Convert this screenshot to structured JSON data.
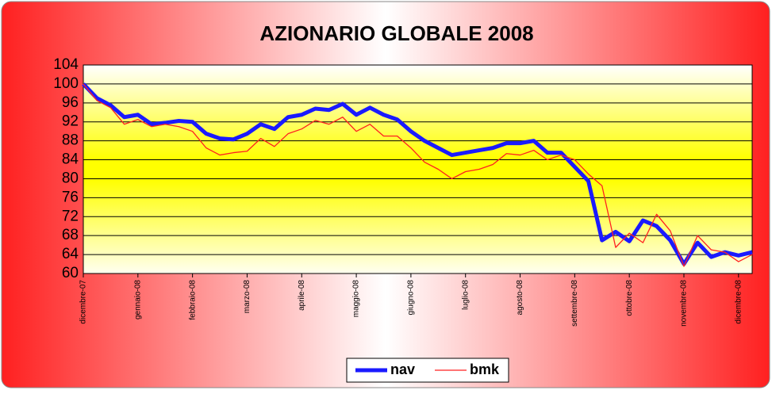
{
  "chart_data": {
    "type": "line",
    "title": "AZIONARIO GLOBALE  2008",
    "categories": [
      "dicembre-07",
      null,
      null,
      null,
      "gennaio-08",
      null,
      null,
      null,
      "febbraio-08",
      null,
      null,
      null,
      "marzo-08",
      null,
      null,
      null,
      "aprile-08",
      null,
      null,
      null,
      "maggio-08",
      null,
      null,
      null,
      "giugno-08",
      null,
      null,
      null,
      "luglio-08",
      null,
      null,
      null,
      "agosto-08",
      null,
      null,
      null,
      "settembre-08",
      null,
      null,
      null,
      "ottobre-08",
      null,
      null,
      null,
      "novembre-08",
      null,
      null,
      null,
      "dicembre-08",
      null
    ],
    "series": [
      {
        "name": "nav",
        "color": "#1a1aff",
        "values": [
          100,
          97,
          95.5,
          93,
          93.5,
          91.5,
          91.8,
          92.2,
          92,
          89.5,
          88.5,
          88.3,
          89.5,
          91.5,
          90.5,
          93,
          93.5,
          94.8,
          94.5,
          95.8,
          93.5,
          95,
          93.5,
          92.5,
          90,
          88,
          86.5,
          85,
          85.5,
          86,
          86.5,
          87.5,
          87.5,
          88,
          85.5,
          85.5,
          82.5,
          79.5,
          67,
          68.8,
          66.8,
          71.2,
          70,
          67,
          62,
          66.5,
          63.5,
          64.5,
          63.8,
          64.5
        ]
      },
      {
        "name": "bmk",
        "color": "#ff2020",
        "values": [
          100,
          96.5,
          95,
          91.5,
          92.5,
          91,
          91.5,
          91,
          90,
          86.5,
          85,
          85.5,
          85.8,
          88.5,
          86.8,
          89.5,
          90.5,
          92.3,
          91.5,
          93,
          90,
          91.5,
          89,
          89,
          86.5,
          83.5,
          82,
          80,
          81.5,
          82,
          83,
          85.3,
          85,
          86,
          84,
          85,
          84,
          81,
          78.5,
          65.5,
          68.5,
          66.5,
          72.5,
          69,
          61.5,
          68,
          65,
          64.5,
          62.5,
          64
        ]
      }
    ],
    "ylim": [
      60,
      104
    ],
    "yticks": [
      60,
      64,
      68,
      72,
      76,
      80,
      84,
      88,
      92,
      96,
      100,
      104
    ],
    "grid": true
  }
}
